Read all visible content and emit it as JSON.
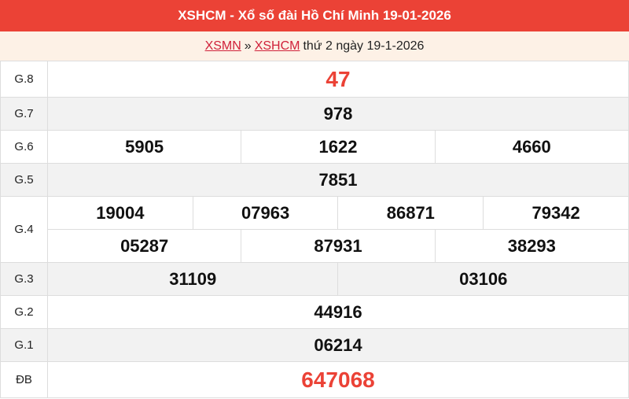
{
  "header": {
    "title": "XSHCM - Xổ số đài Hồ Chí Minh 19-01-2026"
  },
  "breadcrumb": {
    "link1": "XSMN",
    "sep": "»",
    "link2": "XSHCM",
    "text": "thứ 2 ngày 19-1-2026"
  },
  "colors": {
    "accent": "#eb4236",
    "subheader_bg": "#fdf1e6",
    "alt_row": "#f2f2f2"
  },
  "prizes": {
    "g8": {
      "label": "G.8",
      "values": [
        "47"
      ]
    },
    "g7": {
      "label": "G.7",
      "values": [
        "978"
      ]
    },
    "g6": {
      "label": "G.6",
      "values": [
        "5905",
        "1622",
        "4660"
      ]
    },
    "g5": {
      "label": "G.5",
      "values": [
        "7851"
      ]
    },
    "g4": {
      "label": "G.4",
      "values": [
        "19004",
        "07963",
        "86871",
        "79342",
        "05287",
        "87931",
        "38293"
      ]
    },
    "g3": {
      "label": "G.3",
      "values": [
        "31109",
        "03106"
      ]
    },
    "g2": {
      "label": "G.2",
      "values": [
        "44916"
      ]
    },
    "g1": {
      "label": "G.1",
      "values": [
        "06214"
      ]
    },
    "db": {
      "label": "ĐB",
      "values": [
        "647068"
      ]
    }
  }
}
